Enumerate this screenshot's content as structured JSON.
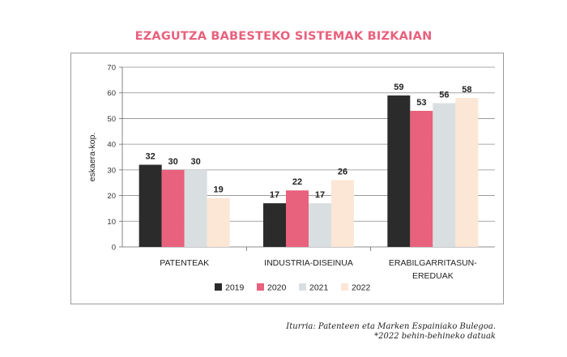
{
  "title": "EZAGUTZA BABESTEKO SISTEMAK BIZKAIAN",
  "source_line1": "Iturria: Patenteen eta Marken Espainiako Bulegoa.",
  "source_line2": "*2022 behin-behineko datuak",
  "chart_data": {
    "type": "bar",
    "title": "EZAGUTZA BABESTEKO SISTEMAK BIZKAIAN",
    "ylabel": "eskaera-kop.",
    "xlabel": "",
    "ylim": [
      0,
      70
    ],
    "yticks": [
      0,
      10,
      20,
      30,
      40,
      50,
      60,
      70
    ],
    "grid": true,
    "legend_position": "bottom",
    "categories": [
      [
        "PATENTEAK"
      ],
      [
        "INDUSTRIA-DISEINUA"
      ],
      [
        "ERABILGARRITASUN-",
        "EREDUAK"
      ]
    ],
    "series": [
      {
        "name": "2019",
        "color": "#2b2b2b",
        "values": [
          32,
          17,
          59
        ]
      },
      {
        "name": "2020",
        "color": "#e8617d",
        "values": [
          30,
          22,
          53
        ]
      },
      {
        "name": "2021",
        "color": "#d9dfe1",
        "values": [
          30,
          17,
          56
        ]
      },
      {
        "name": "2022",
        "color": "#fce6d6",
        "values": [
          19,
          26,
          58
        ]
      }
    ]
  }
}
